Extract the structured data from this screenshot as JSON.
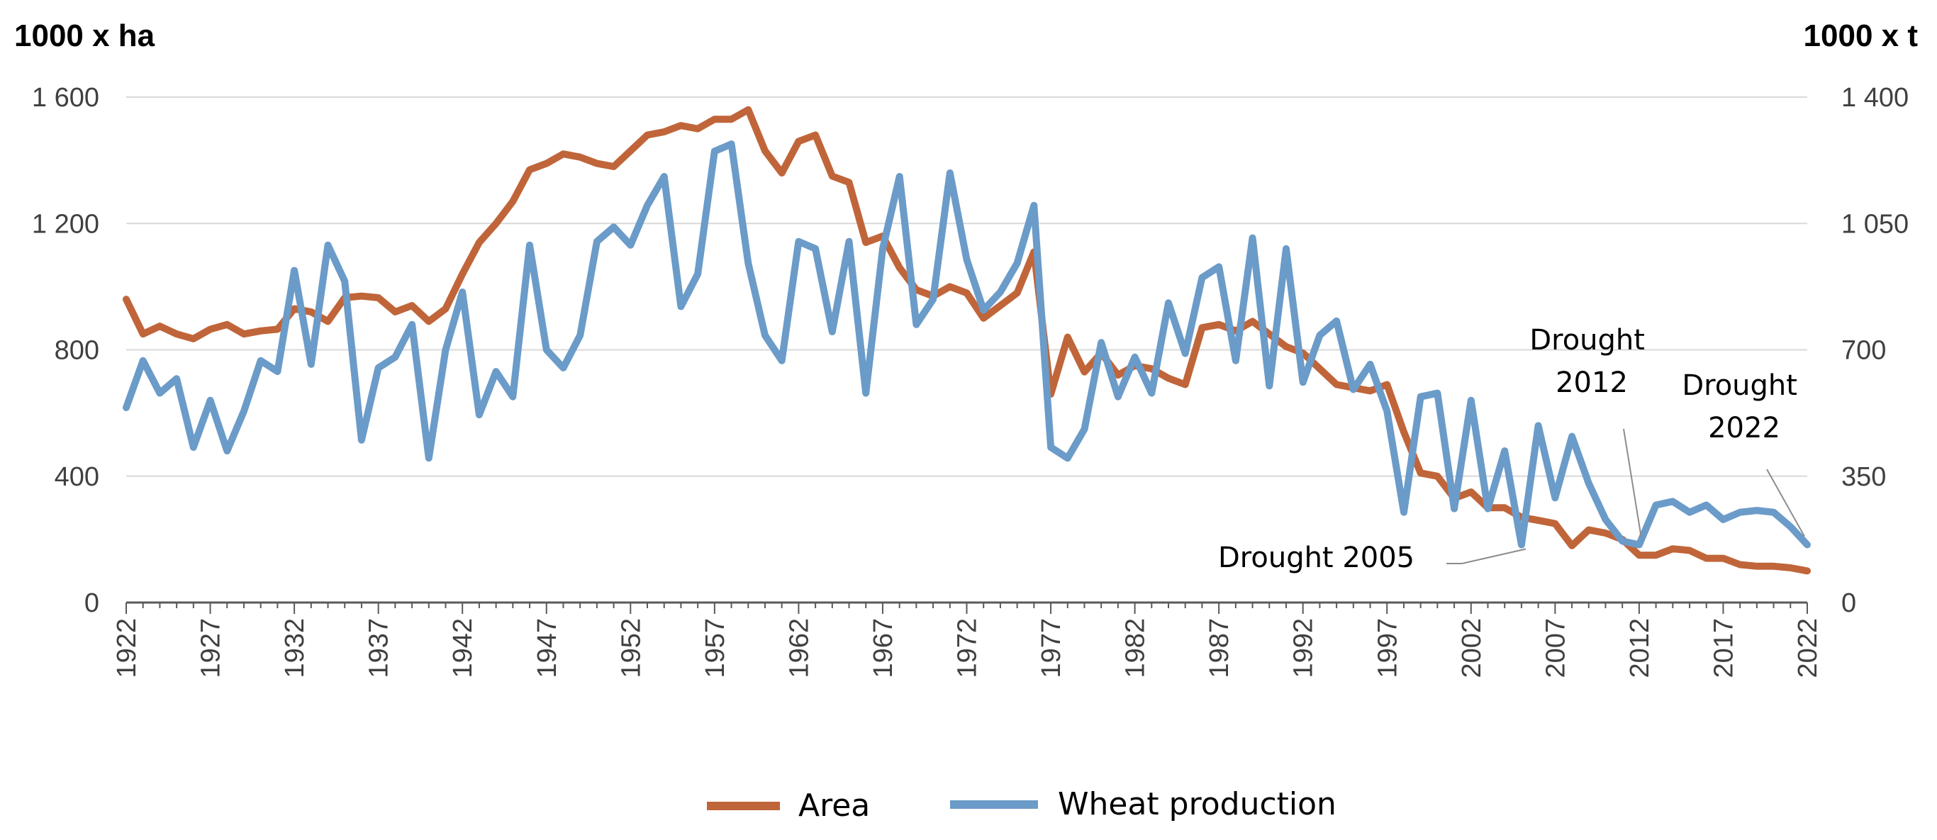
{
  "colors": {
    "area": "#c0653a",
    "wheat": "#6b9bc8",
    "grid": "#d9d9d9",
    "axis": "#595959",
    "leader": "#8c8c8c"
  },
  "chart_data": {
    "type": "line",
    "left_axis_label": "1000 x ha",
    "right_axis_label": "1000 x t",
    "ylim_left": [
      0,
      1600
    ],
    "ylim_right": [
      0,
      1400
    ],
    "yticks_left": [
      0,
      400,
      800,
      1200,
      1600
    ],
    "yticks_left_labels": [
      "0",
      "400",
      "800",
      "1 200",
      "1 600"
    ],
    "yticks_right": [
      0,
      350,
      700,
      1050,
      1400
    ],
    "yticks_right_labels": [
      "0",
      "350",
      "700",
      "1 050",
      "1 400"
    ],
    "xlim": [
      1922,
      2022
    ],
    "xticks": [
      "1922",
      "1927",
      "1932",
      "1937",
      "1942",
      "1947",
      "1952",
      "1957",
      "1962",
      "1967",
      "1972",
      "1977",
      "1982",
      "1987",
      "1992",
      "1997",
      "2002",
      "2007",
      "2012",
      "2017",
      "2022"
    ],
    "grid": true,
    "legend_position": "bottom-center",
    "x": [
      1922,
      1923,
      1924,
      1925,
      1926,
      1927,
      1928,
      1929,
      1930,
      1931,
      1932,
      1933,
      1934,
      1935,
      1936,
      1937,
      1938,
      1939,
      1940,
      1941,
      1942,
      1943,
      1944,
      1945,
      1946,
      1947,
      1948,
      1949,
      1950,
      1951,
      1952,
      1953,
      1954,
      1955,
      1956,
      1957,
      1958,
      1959,
      1960,
      1961,
      1962,
      1963,
      1964,
      1965,
      1966,
      1967,
      1968,
      1969,
      1970,
      1971,
      1972,
      1973,
      1974,
      1975,
      1976,
      1977,
      1978,
      1979,
      1980,
      1981,
      1982,
      1983,
      1984,
      1985,
      1986,
      1987,
      1988,
      1989,
      1990,
      1991,
      1992,
      1993,
      1994,
      1995,
      1996,
      1997,
      1998,
      1999,
      2000,
      2001,
      2002,
      2003,
      2004,
      2005,
      2006,
      2007,
      2008,
      2009,
      2010,
      2011,
      2012,
      2013,
      2014,
      2015,
      2016,
      2017,
      2018,
      2019,
      2020,
      2021,
      2022
    ],
    "series": [
      {
        "name": "Area",
        "axis": "left",
        "values": [
          960,
          850,
          875,
          850,
          835,
          865,
          880,
          850,
          860,
          865,
          930,
          920,
          890,
          965,
          970,
          965,
          920,
          940,
          890,
          930,
          1040,
          1140,
          1200,
          1270,
          1370,
          1390,
          1420,
          1410,
          1390,
          1380,
          1430,
          1480,
          1490,
          1510,
          1500,
          1530,
          1530,
          1560,
          1430,
          1360,
          1460,
          1480,
          1350,
          1330,
          1140,
          1160,
          1060,
          990,
          970,
          1000,
          980,
          900,
          940,
          980,
          1110,
          660,
          840,
          730,
          790,
          720,
          750,
          740,
          710,
          690,
          870,
          880,
          860,
          890,
          850,
          810,
          790,
          740,
          690,
          680,
          670,
          690,
          540,
          410,
          400,
          330,
          350,
          300,
          300,
          270,
          260,
          250,
          180,
          230,
          220,
          200,
          150,
          150,
          170,
          165,
          140,
          140,
          120,
          115,
          115,
          110,
          100
        ]
      },
      {
        "name": "Wheat production",
        "axis": "right",
        "values": [
          540,
          670,
          580,
          620,
          430,
          560,
          420,
          530,
          670,
          640,
          920,
          660,
          990,
          890,
          450,
          650,
          680,
          770,
          400,
          700,
          860,
          520,
          640,
          570,
          990,
          700,
          650,
          740,
          1000,
          1040,
          990,
          1100,
          1180,
          820,
          910,
          1250,
          1270,
          940,
          740,
          670,
          1000,
          980,
          750,
          1000,
          580,
          980,
          1180,
          770,
          840,
          1190,
          950,
          810,
          860,
          940,
          1100,
          430,
          400,
          480,
          720,
          570,
          680,
          580,
          830,
          690,
          900,
          930,
          670,
          1010,
          600,
          980,
          610,
          740,
          780,
          590,
          660,
          530,
          250,
          570,
          580,
          260,
          560,
          260,
          420,
          160,
          490,
          290,
          460,
          330,
          230,
          170,
          160,
          270,
          280,
          250,
          270,
          230,
          250,
          255,
          250,
          210,
          160
        ]
      }
    ],
    "annotations": [
      {
        "label": "Drought 2005",
        "year": 2005
      },
      {
        "label_lines": [
          "Drought",
          "2012"
        ],
        "year": 2012
      },
      {
        "label_lines": [
          "Drought",
          "2022"
        ],
        "year": 2022
      }
    ]
  }
}
